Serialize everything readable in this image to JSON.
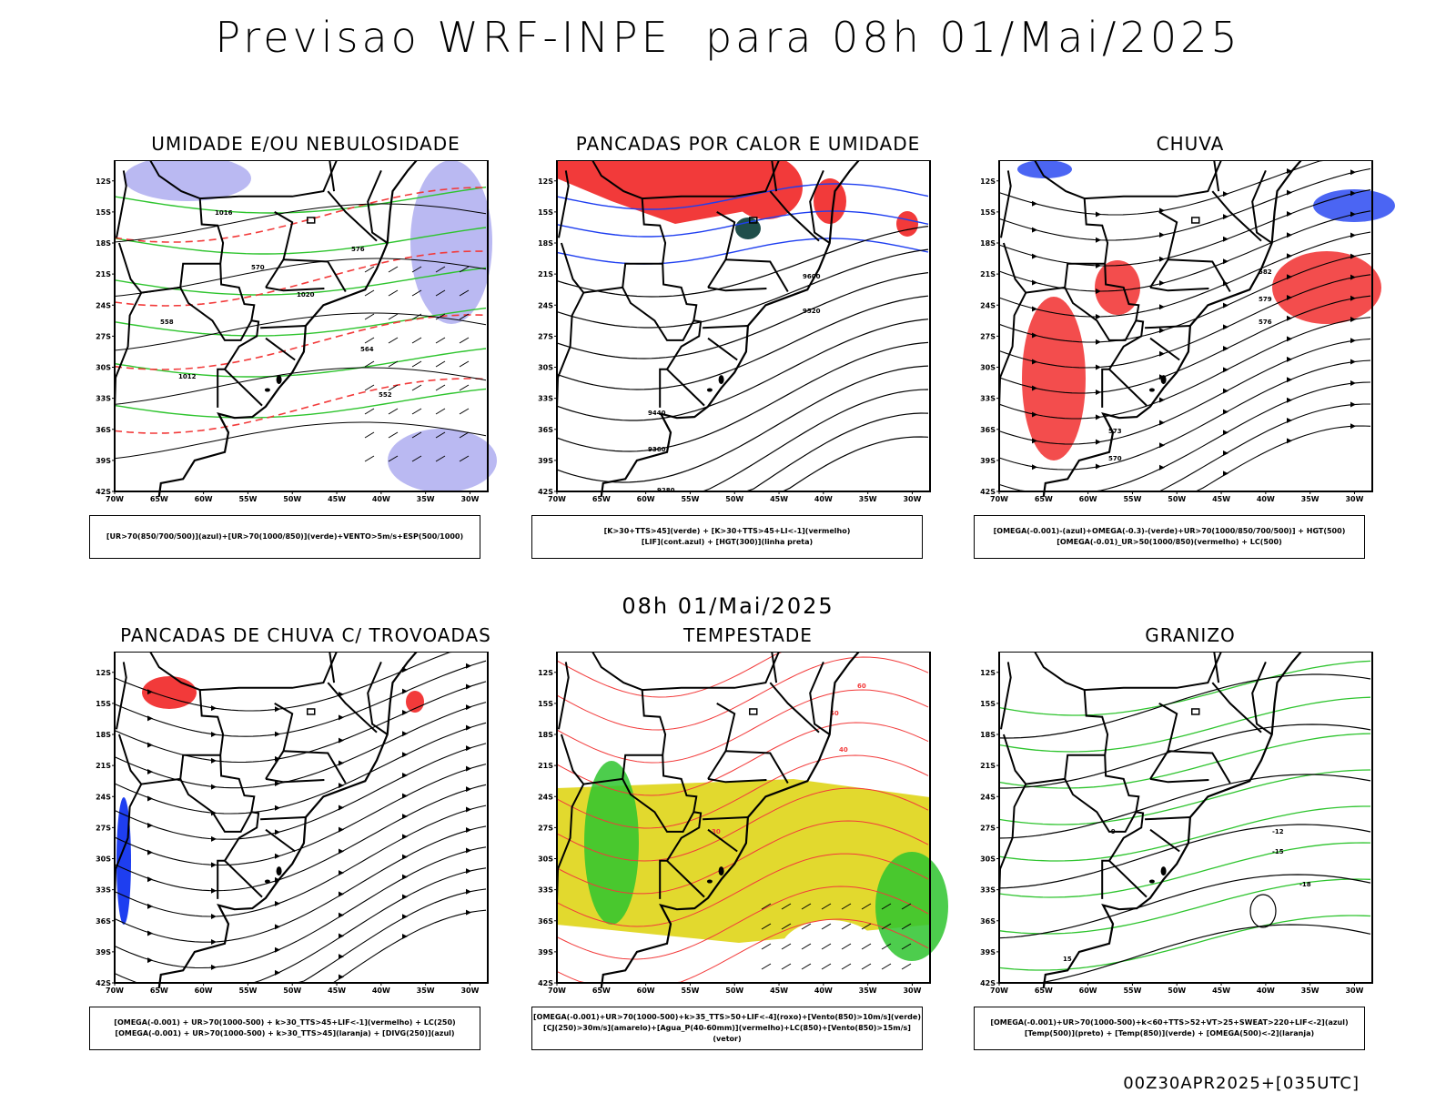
{
  "header": {
    "title": "Previsao WRF-INPE  para 08h 01/Mai/2025"
  },
  "subtitle": "08h 01/Mai/2025",
  "footer": "00Z30APR2025+[035UTC]",
  "axes": {
    "lat_labels": [
      "12S",
      "15S",
      "18S",
      "21S",
      "24S",
      "27S",
      "30S",
      "33S",
      "36S",
      "39S",
      "42S"
    ],
    "lon_labels": [
      "70W",
      "65W",
      "60W",
      "55W",
      "50W",
      "45W",
      "40W",
      "35W",
      "30W"
    ]
  },
  "colors": {
    "red": "#f23a3a",
    "green": "#2ec42e",
    "blue": "#1e3ef0",
    "lavender": "#a9a7ef",
    "yellow": "#e2d92e",
    "darkteal": "#1f4e4a",
    "orange": "#e07a1e"
  },
  "panels": [
    {
      "title": "UMIDADE E/OU NEBULOSIDADE",
      "legend": [
        "[UR>70(850/700/500)](azul)+[UR>70(1000/850)](verde)+VENTO>5m/s+ESP(500/1000)"
      ],
      "contour_labels": [
        "1016",
        "1020",
        "1012",
        "576",
        "570",
        "564",
        "558",
        "552"
      ]
    },
    {
      "title": "PANCADAS POR CALOR E UMIDADE",
      "legend": [
        "[K>30+TTS>45](verde) + [K>30+TTS>45+LI<-1](vermelho)",
        "[LIF](cont.azul) + [HGT(300)](linha preta)"
      ],
      "contour_labels": [
        "9600",
        "9520",
        "9440",
        "9360",
        "9280"
      ]
    },
    {
      "title": "CHUVA",
      "legend": [
        "[OMEGA(-0.001)-(azul)+OMEGA(-0.3)-(verde)+UR>70(1000/850/700/500)] + HGT(500)",
        "[OMEGA(-0.01)_UR>50(1000/850)(vermelho) + LC(500)"
      ],
      "contour_labels": [
        "582",
        "579",
        "576",
        "573",
        "570"
      ]
    },
    {
      "title": "PANCADAS DE CHUVA C/ TROVOADAS",
      "legend": [
        "[OMEGA(-0.001) + UR>70(1000-500) + k>30_TTS>45+LIF<-1](vermelho) + LC(250)",
        "[OMEGA(-0.001) + UR>70(1000-500) + k>30_TTS>45](laranja) + [DIVG(250)](azul)"
      ]
    },
    {
      "title": "TEMPESTADE",
      "legend": [
        "[OMEGA(-0.001)+UR>70(1000-500)+k>35_TTS>50+LIF<-4](roxo)+[Vento(850)>10m/s](verde)",
        "[CJ(250)>30m/s](amarelo)+[Agua_P(40-60mm)](vermelho)+LC(850)+[Vento(850)>15m/s](vetor)"
      ],
      "contour_labels": [
        "50",
        "60",
        "40",
        "30"
      ]
    },
    {
      "title": "GRANIZO",
      "legend": [
        "[OMEGA(-0.001)+UR>70(1000-500)+k<60+TTS>52+VT>25+SWEAT>220+LIF<-2](azul)",
        "[Temp(500)](preto) + [Temp(850)](verde) + [OMEGA(500)<-2](laranja)"
      ],
      "contour_labels": [
        "-12",
        "-15",
        "-18",
        "-9",
        "15"
      ]
    }
  ]
}
